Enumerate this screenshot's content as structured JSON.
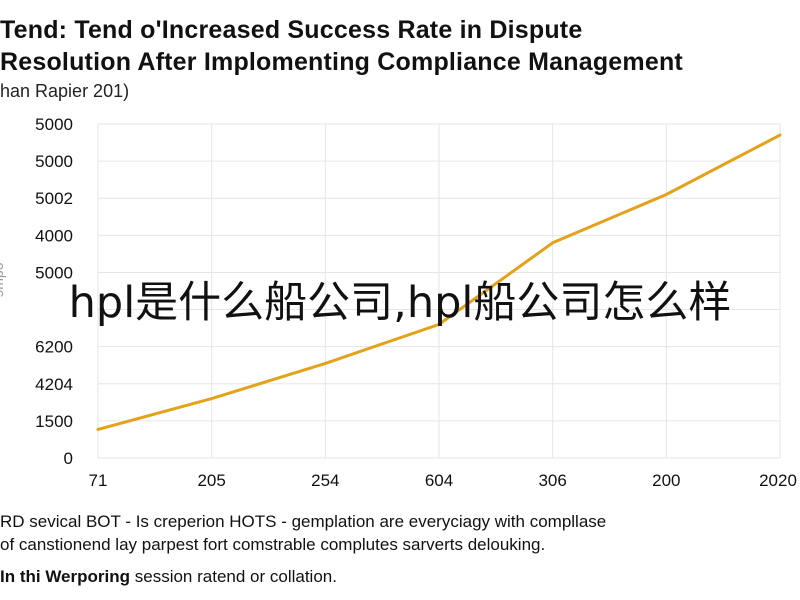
{
  "chart_data": {
    "type": "line",
    "title_line1": "Tend: Tend o'Increased Success Rate in Dispute",
    "title_line2": "Resolution After Implomenting Compliance Management",
    "subtitle": "han Rapier 201)",
    "ylabel": "ɘmpo",
    "y_tick_labels": [
      "5000",
      "5000",
      "5002",
      "4000",
      "5000",
      "",
      "6200",
      "4204",
      "1500",
      "0"
    ],
    "x_tick_labels": [
      "71",
      "205",
      "254",
      "604",
      "306",
      "200",
      "2020"
    ],
    "grid": true,
    "series": [
      {
        "color": "#e3a21a",
        "points": [
          [
            0,
            0.77
          ],
          [
            1,
            1.6
          ],
          [
            2,
            2.55
          ],
          [
            3,
            3.6
          ],
          [
            4,
            5.8
          ],
          [
            5,
            7.1
          ],
          [
            6,
            8.7
          ]
        ]
      }
    ]
  },
  "overlay_text": "hpl是什么船公司,hpl船公司怎么样",
  "caption": {
    "line1": "RD sevical BOT - Is creperion HOTS - gemplation are everyciagy with compllase",
    "line2": "of canstionend lay parpest fort comstrable complutes sarverts delouking."
  },
  "footnote": {
    "bold": "In thi Werporing",
    "rest": " session ratend or collation."
  },
  "colors": {
    "line": "#e3a21a",
    "grid": "#e6e6e6"
  }
}
